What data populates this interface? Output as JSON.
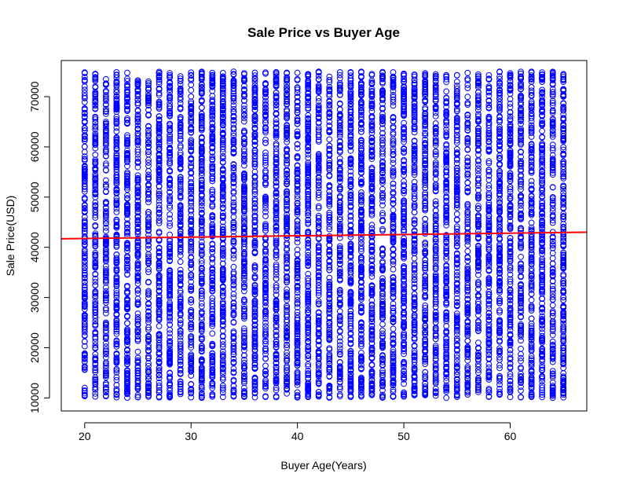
{
  "chart_data": {
    "type": "scatter",
    "title": "Sale Price vs Buyer Age",
    "xlabel": "Buyer Age(Years)",
    "ylabel": "Sale Price(USD)",
    "xlim": [
      17.8,
      67.2
    ],
    "ylim": [
      7400,
      77200
    ],
    "x_ticks": [
      20,
      30,
      40,
      50,
      60
    ],
    "y_ticks": [
      10000,
      20000,
      30000,
      40000,
      50000,
      60000,
      70000
    ],
    "grid": false,
    "legend": "none",
    "point_color": "#0000ff",
    "point_style": "open-circle",
    "x_values": "integer ages 20 to 65, one column of points per age",
    "y_range": [
      10000,
      75000
    ],
    "regression_line": {
      "color": "#ff0000",
      "x": [
        17.8,
        67.2
      ],
      "y": [
        41700,
        43000
      ]
    },
    "series": [
      {
        "ages": [
          20,
          21,
          22,
          23,
          24,
          25,
          26,
          27,
          28,
          29,
          30,
          31,
          32,
          33,
          34,
          35,
          36,
          37,
          38,
          39,
          40,
          41,
          42,
          43,
          44,
          45,
          46,
          47,
          48,
          49,
          50,
          51,
          52,
          53,
          54,
          55,
          56,
          57,
          58,
          59,
          60,
          61,
          62,
          63,
          64,
          65
        ],
        "price_min": 10000,
        "price_max": 75000
      }
    ]
  }
}
